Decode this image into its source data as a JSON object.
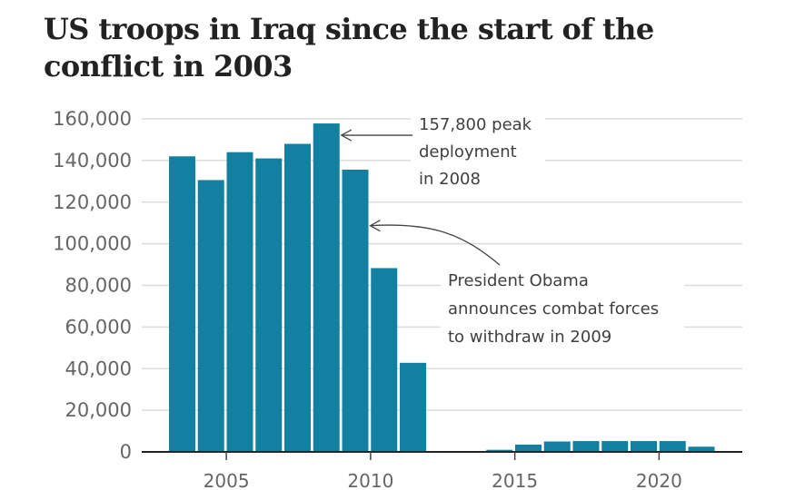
{
  "chart_data": {
    "type": "bar",
    "title": "US troops in Iraq since the start of the conflict in 2003",
    "xlabel": "",
    "ylabel": "",
    "x": [
      2003,
      2004,
      2005,
      2006,
      2007,
      2008,
      2009,
      2010,
      2011,
      2012,
      2013,
      2014,
      2015,
      2016,
      2017,
      2018,
      2019,
      2020,
      2021
    ],
    "values": [
      142000,
      130600,
      144000,
      141000,
      148000,
      157800,
      135600,
      88300,
      42800,
      0,
      200,
      1000,
      3500,
      5000,
      5200,
      5200,
      5200,
      5200,
      2500
    ],
    "ylim": [
      0,
      160000
    ],
    "yticks": [
      0,
      20000,
      40000,
      60000,
      80000,
      100000,
      120000,
      140000,
      160000
    ],
    "ytick_labels": [
      "0",
      "20,000",
      "40,000",
      "60,000",
      "80,000",
      "100,000",
      "120,000",
      "140,000",
      "160,000"
    ],
    "xticks": [
      2005,
      2010,
      2015,
      2020
    ],
    "xtick_labels": [
      "2005",
      "2010",
      "2015",
      "2020"
    ],
    "grid": true,
    "bar_color": "#1380A1",
    "annotations": [
      {
        "target_year": 2008,
        "target_value": 157800,
        "lines": [
          "157,800 peak",
          "deployment",
          "in 2008"
        ]
      },
      {
        "target_year": 2009,
        "target_value": 110000,
        "lines": [
          "President Obama",
          "announces combat forces",
          "to withdraw in 2009"
        ]
      }
    ]
  }
}
